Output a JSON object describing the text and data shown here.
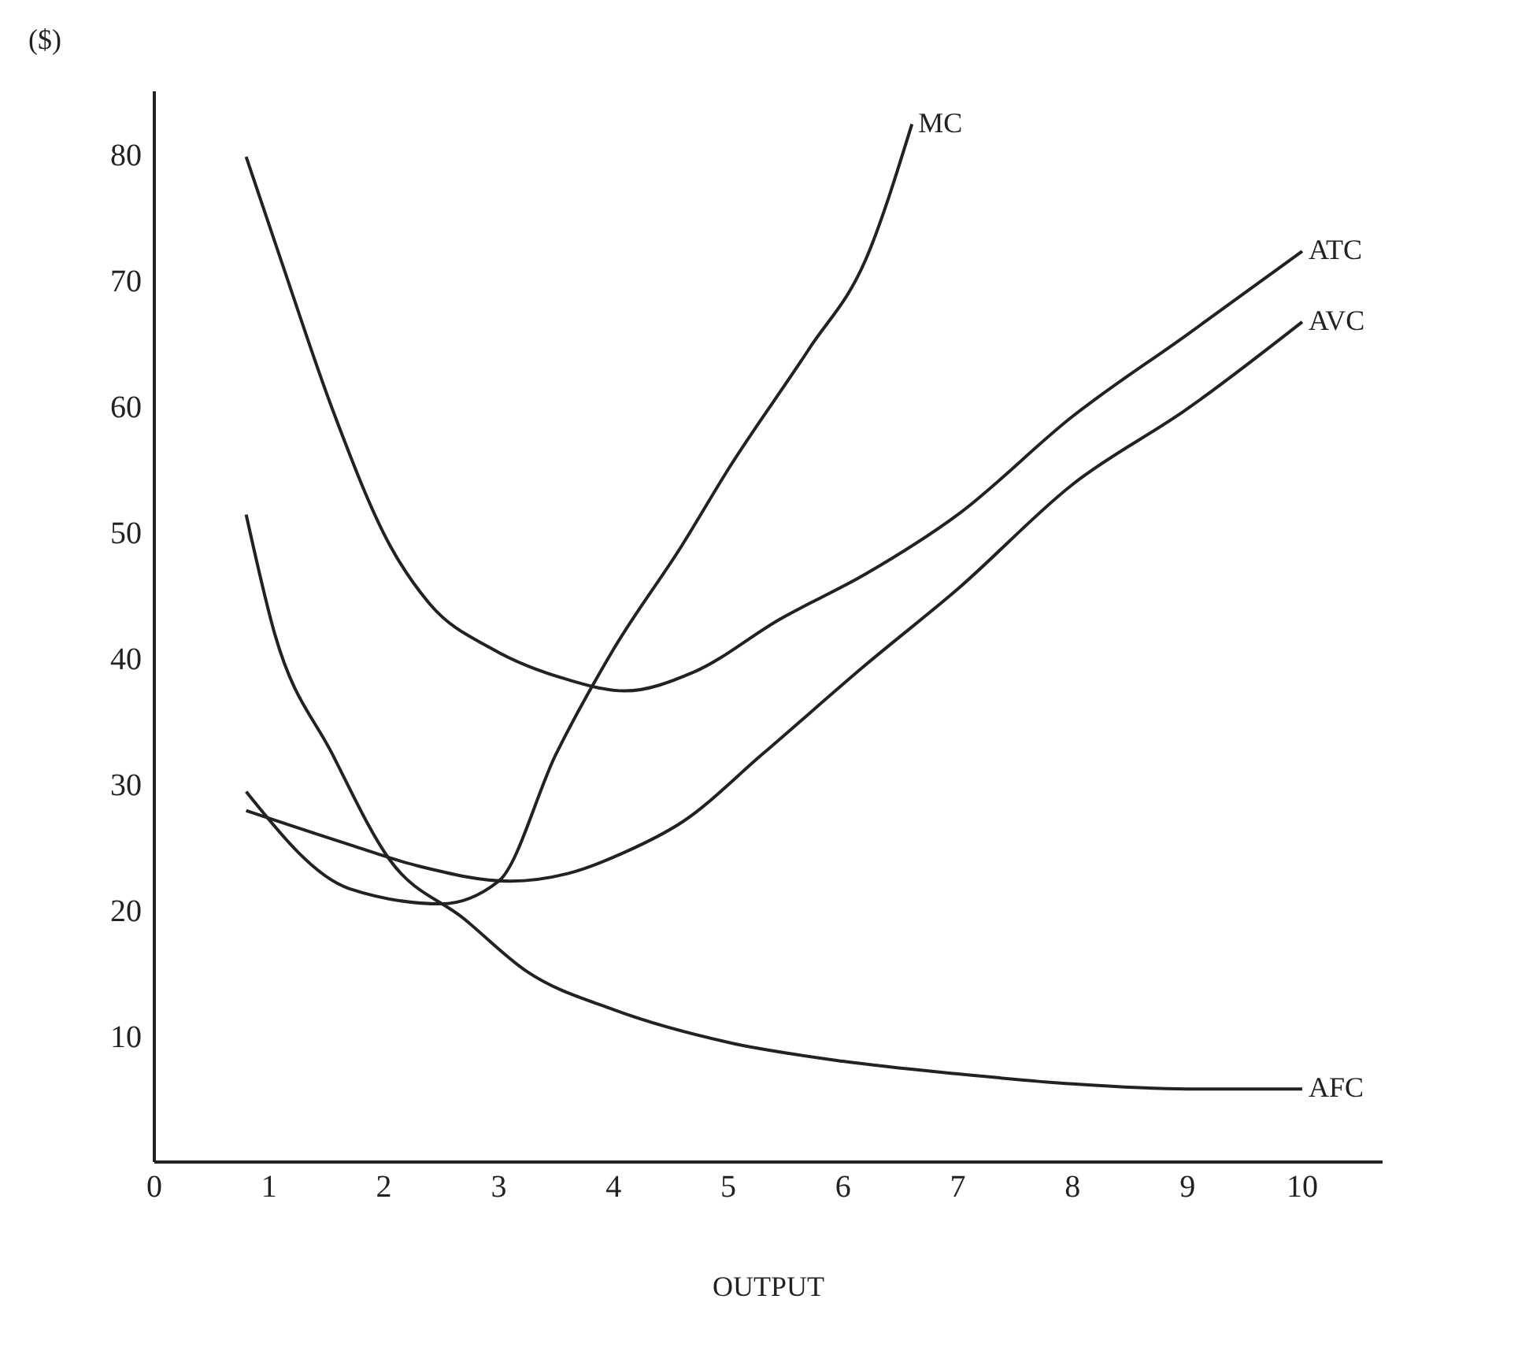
{
  "chart_data": {
    "type": "line",
    "ylabel": "($)",
    "xlabel": "OUTPUT",
    "xlim": [
      0,
      10.7
    ],
    "xticks": [
      0,
      1,
      2,
      3,
      4,
      5,
      6,
      7,
      8,
      9,
      10
    ],
    "ylim": [
      0,
      85
    ],
    "yticks": [
      10,
      20,
      30,
      40,
      50,
      60,
      70,
      80
    ],
    "grid": false,
    "legend": false,
    "marker": "none",
    "line_style": "solid",
    "series": [
      {
        "name": "MC",
        "color": "#222222",
        "x": [
          0.8,
          1.7,
          2.5,
          3,
          3.5,
          4,
          4.6,
          5,
          5.7,
          6.2,
          6.6
        ],
        "values": [
          29.4,
          21.7,
          20.5,
          22.3,
          32.4,
          40.7,
          49,
          55,
          64.5,
          71.7,
          82.4
        ]
      },
      {
        "name": "ATC",
        "color": "#222222",
        "x": [
          0.8,
          1.1,
          1.55,
          2.05,
          2.4,
          2.95,
          3.6,
          4.1,
          4.7,
          5.45,
          6.2,
          7,
          8,
          9,
          10
        ],
        "values": [
          79.8,
          71.7,
          59.8,
          49,
          44.3,
          40.7,
          38.3,
          37.4,
          38.9,
          43.1,
          46.7,
          51.4,
          59.2,
          65.7,
          72.3
        ]
      },
      {
        "name": "AVC",
        "color": "#222222",
        "x": [
          0.8,
          1.7,
          2.3,
          3.1,
          3.6,
          4.1,
          4.6,
          5.3,
          6.2,
          7,
          8,
          9,
          10
        ],
        "values": [
          27.9,
          25.2,
          23.5,
          22.3,
          22.9,
          24.6,
          27,
          32.4,
          39.5,
          45.5,
          53.8,
          59.8,
          66.7
        ]
      },
      {
        "name": "AFC",
        "color": "#222222",
        "x": [
          0.8,
          1.05,
          1.55,
          2.05,
          2.7,
          3.25,
          4,
          5,
          6,
          7,
          8,
          9,
          10
        ],
        "values": [
          51.4,
          41.9,
          32.4,
          24,
          19.3,
          15.1,
          12.1,
          9.5,
          8,
          7,
          6.2,
          5.8,
          5.8
        ]
      }
    ]
  }
}
